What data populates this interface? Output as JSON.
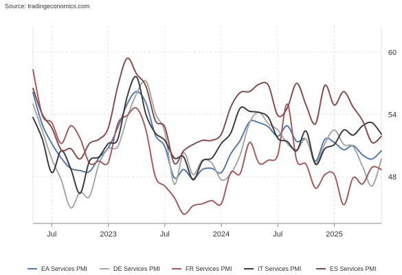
{
  "source": "Source: tradingeconomics.com",
  "colors": {
    "grid": "#e6e6e6",
    "axis": "#888888",
    "background": "#ffffff"
  },
  "chart_data": {
    "type": "line",
    "title": "",
    "xlabel": "",
    "ylabel": "",
    "x": [
      "2022-05",
      "2022-06",
      "2022-07",
      "2022-08",
      "2022-09",
      "2022-10",
      "2022-11",
      "2022-12",
      "2023-01",
      "2023-02",
      "2023-03",
      "2023-04",
      "2023-05",
      "2023-06",
      "2023-07",
      "2023-08",
      "2023-09",
      "2023-10",
      "2023-11",
      "2023-12",
      "2024-01",
      "2024-02",
      "2024-03",
      "2024-04",
      "2024-05",
      "2024-06",
      "2024-07",
      "2024-08",
      "2024-09",
      "2024-10",
      "2024-11",
      "2024-12",
      "2025-01",
      "2025-02",
      "2025-03",
      "2025-04",
      "2025-05",
      "2025-06"
    ],
    "xlim": [
      "2022-05",
      "2025-06"
    ],
    "ylim": [
      43.5,
      62.5
    ],
    "x_ticks": [
      {
        "label": "Jul",
        "date": "2022-07"
      },
      {
        "label": "2023",
        "date": "2023-01"
      },
      {
        "label": "Jul",
        "date": "2023-07"
      },
      {
        "label": "2024",
        "date": "2024-01"
      },
      {
        "label": "Jul",
        "date": "2024-07"
      },
      {
        "label": "2025",
        "date": "2025-01"
      }
    ],
    "y_ticks": [
      48,
      54,
      60
    ],
    "grid": true,
    "legend_position": "bottom",
    "series": [
      {
        "name": "EA Services PMI",
        "color": "#4f7ab3",
        "values": [
          56.1,
          53.0,
          51.2,
          49.8,
          48.8,
          48.6,
          48.5,
          49.8,
          50.8,
          52.7,
          55.0,
          56.2,
          55.1,
          52.0,
          50.9,
          47.9,
          48.7,
          47.8,
          48.7,
          48.8,
          48.4,
          50.2,
          51.5,
          53.3,
          53.2,
          52.8,
          51.9,
          52.9,
          51.4,
          51.6,
          49.5,
          51.6,
          51.3,
          50.6,
          51.0,
          50.1,
          49.7,
          50.5
        ]
      },
      {
        "name": "DE Services PMI",
        "color": "#a6a6a6",
        "values": [
          55.0,
          52.4,
          49.7,
          47.7,
          45.0,
          46.5,
          46.1,
          49.2,
          50.7,
          50.9,
          53.7,
          56.0,
          57.2,
          54.1,
          52.3,
          47.3,
          50.3,
          48.2,
          49.6,
          49.3,
          47.7,
          48.3,
          50.1,
          53.2,
          54.2,
          53.1,
          52.5,
          51.2,
          50.6,
          51.6,
          49.3,
          51.2,
          52.5,
          51.1,
          50.9,
          49.0,
          47.1,
          49.7
        ]
      },
      {
        "name": "FR Services PMI",
        "color": "#a85a5a",
        "values": [
          58.3,
          53.9,
          53.2,
          51.2,
          52.9,
          51.7,
          49.3,
          49.5,
          49.4,
          53.1,
          53.9,
          54.6,
          52.5,
          48.0,
          47.1,
          46.0,
          44.4,
          45.2,
          45.4,
          45.7,
          45.4,
          48.4,
          48.3,
          51.3,
          49.3,
          49.6,
          50.1,
          55.0,
          49.6,
          49.2,
          46.9,
          48.2,
          48.2,
          45.3,
          47.9,
          47.3,
          48.9,
          48.7
        ]
      },
      {
        "name": "IT Services PMI",
        "color": "#3c3c3c",
        "values": [
          53.7,
          51.6,
          48.4,
          50.5,
          48.8,
          46.4,
          49.5,
          49.9,
          51.2,
          51.6,
          55.7,
          57.6,
          54.0,
          52.2,
          51.5,
          49.8,
          49.9,
          47.7,
          49.5,
          49.8,
          51.2,
          52.2,
          54.6,
          54.3,
          54.2,
          53.7,
          51.7,
          51.4,
          50.5,
          52.4,
          49.2,
          50.7,
          51.1,
          52.5,
          52.0,
          52.9,
          53.2,
          52.1
        ]
      },
      {
        "name": "ES Services PMI",
        "color": "#8a4a4a",
        "values": [
          56.5,
          54.0,
          52.7,
          50.6,
          50.7,
          49.7,
          51.2,
          51.6,
          52.7,
          56.7,
          59.4,
          57.9,
          56.7,
          53.4,
          52.8,
          49.3,
          50.5,
          51.1,
          51.5,
          51.5,
          52.1,
          54.7,
          56.1,
          56.2,
          56.9,
          56.8,
          53.9,
          54.6,
          57.0,
          54.9,
          53.1,
          56.8,
          54.9,
          56.2,
          54.7,
          53.4,
          51.3,
          51.9
        ]
      }
    ]
  }
}
